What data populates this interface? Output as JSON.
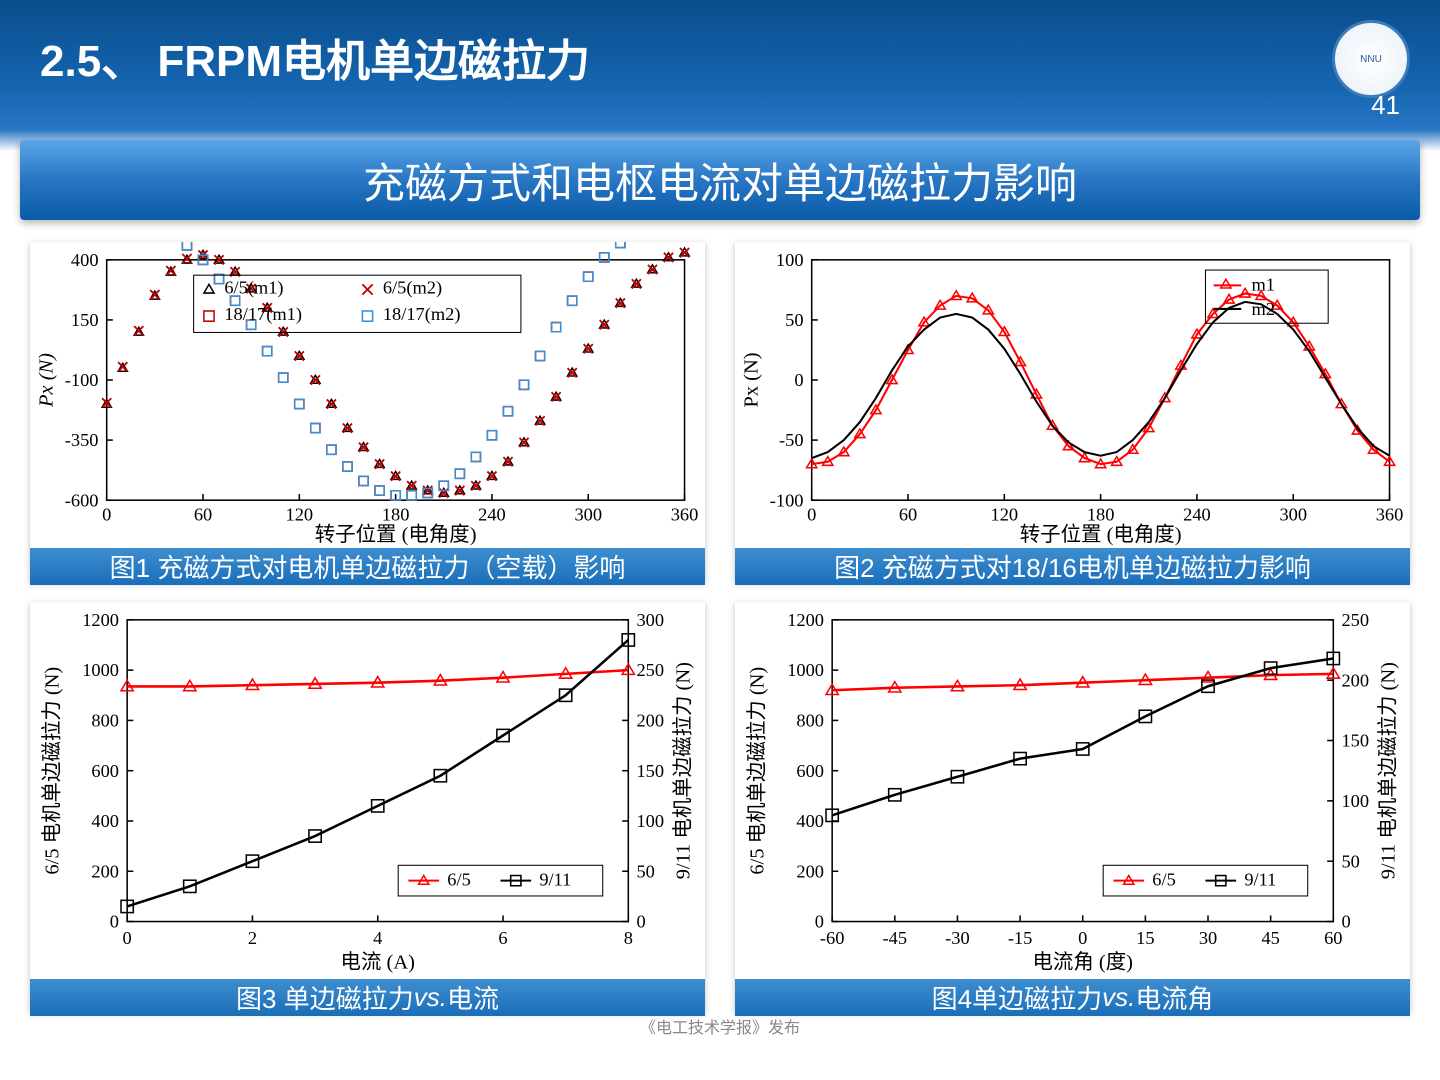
{
  "header": {
    "section_title": "2.5、 FRPM电机单边磁拉力",
    "page_number": "41",
    "logo_text": "NNU"
  },
  "subtitle": "充磁方式和电枢电流对单边磁拉力影响",
  "watermark": "《电工技术学报》发布",
  "chart1": {
    "type": "scatter-line",
    "caption": "图1 充磁方式对电机单边磁拉力（空载）影响",
    "xlabel": "转子位置 (电角度)",
    "ylabel": "Px (N)",
    "xlim": [
      0,
      360
    ],
    "xticks": [
      0,
      60,
      120,
      180,
      240,
      300,
      360
    ],
    "ylim": [
      -600,
      400
    ],
    "yticks": [
      -600,
      -350,
      -100,
      150,
      400
    ],
    "background": "#ffffff",
    "legend": {
      "items": [
        {
          "label": "6/5(m1)",
          "marker": "triangle-open",
          "color": "#000000"
        },
        {
          "label": "6/5(m2)",
          "marker": "x",
          "color": "#c00000"
        },
        {
          "label": "18/17(m1)",
          "marker": "square-open",
          "color": "#c00000",
          "line": "dash"
        },
        {
          "label": "18/17(m2)",
          "marker": "square-open",
          "color": "#3a8fd8"
        }
      ],
      "pos": "top-center"
    },
    "series": [
      {
        "name": "6/5(m1)",
        "marker": "triangle-open",
        "color": "#000000",
        "x": [
          0,
          10,
          20,
          30,
          40,
          50,
          60,
          70,
          80,
          90,
          100,
          110,
          120,
          130,
          140,
          150,
          160,
          170,
          180,
          190,
          200,
          210,
          220,
          230,
          240,
          250,
          260,
          270,
          280,
          290,
          300,
          310,
          320,
          330,
          340,
          350,
          360
        ],
        "y": [
          -200,
          -50,
          100,
          250,
          350,
          400,
          420,
          400,
          350,
          280,
          200,
          100,
          0,
          -100,
          -200,
          -300,
          -380,
          -450,
          -500,
          -540,
          -560,
          -570,
          -560,
          -540,
          -500,
          -440,
          -360,
          -270,
          -170,
          -70,
          30,
          130,
          220,
          300,
          360,
          410,
          430
        ]
      },
      {
        "name": "6/5(m2)",
        "marker": "x",
        "color": "#c00000",
        "x": [
          0,
          10,
          20,
          30,
          40,
          50,
          60,
          70,
          80,
          90,
          100,
          110,
          120,
          130,
          140,
          150,
          160,
          170,
          180,
          190,
          200,
          210,
          220,
          230,
          240,
          250,
          260,
          270,
          280,
          290,
          300,
          310,
          320,
          330,
          340,
          350,
          360
        ],
        "y": [
          -195,
          -45,
          105,
          255,
          355,
          405,
          420,
          400,
          350,
          280,
          200,
          100,
          0,
          -100,
          -200,
          -300,
          -380,
          -450,
          -500,
          -540,
          -560,
          -570,
          -560,
          -540,
          -500,
          -440,
          -360,
          -270,
          -170,
          -70,
          30,
          130,
          220,
          300,
          360,
          410,
          430
        ]
      },
      {
        "name": "18/17(m1)",
        "marker": "square-open",
        "color": "#c00000",
        "x": [
          0,
          10,
          20,
          30,
          40,
          50,
          60,
          70,
          80,
          90,
          100,
          110,
          120,
          130,
          140,
          150,
          160,
          170,
          180,
          190,
          200,
          210,
          220,
          230,
          240,
          250,
          260,
          270,
          280,
          290,
          300,
          310,
          320,
          330,
          340,
          350,
          360
        ],
        "y": [
          520,
          530,
          530,
          520,
          500,
          460,
          400,
          320,
          230,
          130,
          20,
          -90,
          -200,
          -300,
          -390,
          -460,
          -520,
          -560,
          -580,
          -580,
          -570,
          -540,
          -490,
          -420,
          -330,
          -230,
          -120,
          0,
          120,
          230,
          330,
          410,
          470,
          510,
          530,
          540,
          530
        ]
      },
      {
        "name": "18/17(m2)",
        "marker": "square-open",
        "color": "#3a8fd8",
        "x": [
          0,
          10,
          20,
          30,
          40,
          50,
          60,
          70,
          80,
          90,
          100,
          110,
          120,
          130,
          140,
          150,
          160,
          170,
          180,
          190,
          200,
          210,
          220,
          230,
          240,
          250,
          260,
          270,
          280,
          290,
          300,
          310,
          320,
          330,
          340,
          350,
          360
        ],
        "y": [
          520,
          530,
          530,
          520,
          500,
          460,
          400,
          320,
          230,
          130,
          20,
          -90,
          -200,
          -300,
          -390,
          -460,
          -520,
          -560,
          -580,
          -580,
          -570,
          -540,
          -490,
          -420,
          -330,
          -230,
          -120,
          0,
          120,
          230,
          330,
          410,
          470,
          510,
          530,
          540,
          530
        ]
      }
    ]
  },
  "chart2": {
    "type": "line-marker",
    "caption": "图2 充磁方式对18/16电机单边磁拉力影响",
    "xlabel": "转子位置 (电角度)",
    "ylabel": "Px (N)",
    "xlim": [
      0,
      360
    ],
    "xticks": [
      0,
      60,
      120,
      180,
      240,
      300,
      360
    ],
    "ylim": [
      -100,
      100
    ],
    "yticks": [
      -100,
      -50,
      0,
      50,
      100
    ],
    "background": "#ffffff",
    "legend": {
      "items": [
        {
          "label": "m1",
          "marker": "triangle-open",
          "color": "#ff0000",
          "line_color": "#ff0000"
        },
        {
          "label": "m2",
          "marker": "none",
          "color": "#000000",
          "line_color": "#000000"
        }
      ],
      "pos": "top-right"
    },
    "series": [
      {
        "name": "m1",
        "marker": "triangle-open",
        "color": "#ff0000",
        "line_color": "#ff0000",
        "x": [
          0,
          10,
          20,
          30,
          40,
          50,
          60,
          70,
          80,
          90,
          100,
          110,
          120,
          130,
          140,
          150,
          160,
          170,
          180,
          190,
          200,
          210,
          220,
          230,
          240,
          250,
          260,
          270,
          280,
          290,
          300,
          310,
          320,
          330,
          340,
          350,
          360
        ],
        "y": [
          -70,
          -68,
          -60,
          -45,
          -25,
          0,
          25,
          48,
          62,
          70,
          68,
          58,
          40,
          15,
          -12,
          -38,
          -55,
          -65,
          -70,
          -68,
          -58,
          -40,
          -15,
          12,
          38,
          55,
          67,
          72,
          70,
          62,
          48,
          28,
          5,
          -20,
          -42,
          -58,
          -68
        ]
      },
      {
        "name": "m2",
        "marker": "none",
        "color": "#000000",
        "line_color": "#000000",
        "x": [
          0,
          10,
          20,
          30,
          40,
          50,
          60,
          70,
          80,
          90,
          100,
          110,
          120,
          130,
          140,
          150,
          160,
          170,
          180,
          190,
          200,
          210,
          220,
          230,
          240,
          250,
          260,
          270,
          280,
          290,
          300,
          310,
          320,
          330,
          340,
          350,
          360
        ],
        "y": [
          -65,
          -60,
          -50,
          -35,
          -15,
          8,
          28,
          42,
          52,
          55,
          52,
          42,
          26,
          5,
          -18,
          -38,
          -52,
          -60,
          -63,
          -60,
          -50,
          -35,
          -15,
          8,
          30,
          48,
          60,
          65,
          63,
          55,
          42,
          24,
          2,
          -20,
          -40,
          -55,
          -63
        ]
      }
    ]
  },
  "chart3": {
    "type": "dual-axis",
    "caption_prefix": "图3 单边磁拉力",
    "caption_vs": "vs.",
    "caption_suffix": "电流",
    "xlabel": "电流 (A)",
    "ylabel_left": "6/5 电机单边磁拉力 (N)",
    "ylabel_right": "9/11 电机单边磁拉力 (N)",
    "xlim": [
      0,
      8
    ],
    "xticks": [
      0,
      2,
      4,
      6,
      8
    ],
    "ylim_left": [
      0,
      1200
    ],
    "yticks_left": [
      0,
      200,
      400,
      600,
      800,
      1000,
      1200
    ],
    "ylim_right": [
      0,
      300
    ],
    "yticks_right": [
      0,
      50,
      100,
      150,
      200,
      250,
      300
    ],
    "background": "#ffffff",
    "legend": {
      "items": [
        {
          "label": "6/5",
          "marker": "triangle-open",
          "color": "#ff0000"
        },
        {
          "label": "9/11",
          "marker": "square-open",
          "color": "#000000"
        }
      ],
      "pos": "bottom-right"
    },
    "series_left": {
      "name": "6/5",
      "marker": "triangle-open",
      "color": "#ff0000",
      "x": [
        0,
        1,
        2,
        3,
        4,
        5,
        6,
        7,
        8
      ],
      "y": [
        935,
        935,
        940,
        945,
        950,
        958,
        970,
        985,
        1000
      ]
    },
    "series_right": {
      "name": "9/11",
      "marker": "square-open",
      "color": "#000000",
      "x": [
        0,
        1,
        2,
        3,
        4,
        5,
        6,
        7,
        8
      ],
      "y": [
        15,
        35,
        60,
        85,
        115,
        145,
        185,
        225,
        280
      ]
    }
  },
  "chart4": {
    "type": "dual-axis",
    "caption_prefix": "图4单边磁拉力",
    "caption_vs": "vs.",
    "caption_suffix": "电流角",
    "xlabel": "电流角 (度)",
    "ylabel_left": "6/5 电机单边磁拉力 (N)",
    "ylabel_right": "9/11 电机单边磁拉力 (N)",
    "xlim": [
      -60,
      60
    ],
    "xticks": [
      -60,
      -45,
      -30,
      -15,
      0,
      15,
      30,
      45,
      60
    ],
    "ylim_left": [
      0,
      1200
    ],
    "yticks_left": [
      0,
      200,
      400,
      600,
      800,
      1000,
      1200
    ],
    "ylim_right": [
      0,
      250
    ],
    "yticks_right": [
      0,
      50,
      100,
      150,
      200,
      250
    ],
    "background": "#ffffff",
    "legend": {
      "items": [
        {
          "label": "6/5",
          "marker": "triangle-open",
          "color": "#ff0000"
        },
        {
          "label": "9/11",
          "marker": "square-open",
          "color": "#000000"
        }
      ],
      "pos": "bottom-right"
    },
    "series_left": {
      "name": "6/5",
      "marker": "triangle-open",
      "color": "#ff0000",
      "x": [
        -60,
        -45,
        -30,
        -15,
        0,
        15,
        30,
        45,
        60
      ],
      "y": [
        920,
        930,
        935,
        940,
        950,
        960,
        970,
        980,
        985
      ]
    },
    "series_right": {
      "name": "9/11",
      "marker": "square-open",
      "color": "#000000",
      "x": [
        -60,
        -45,
        -30,
        -15,
        0,
        15,
        30,
        45,
        60
      ],
      "y": [
        88,
        105,
        120,
        135,
        143,
        170,
        195,
        210,
        218
      ]
    }
  }
}
